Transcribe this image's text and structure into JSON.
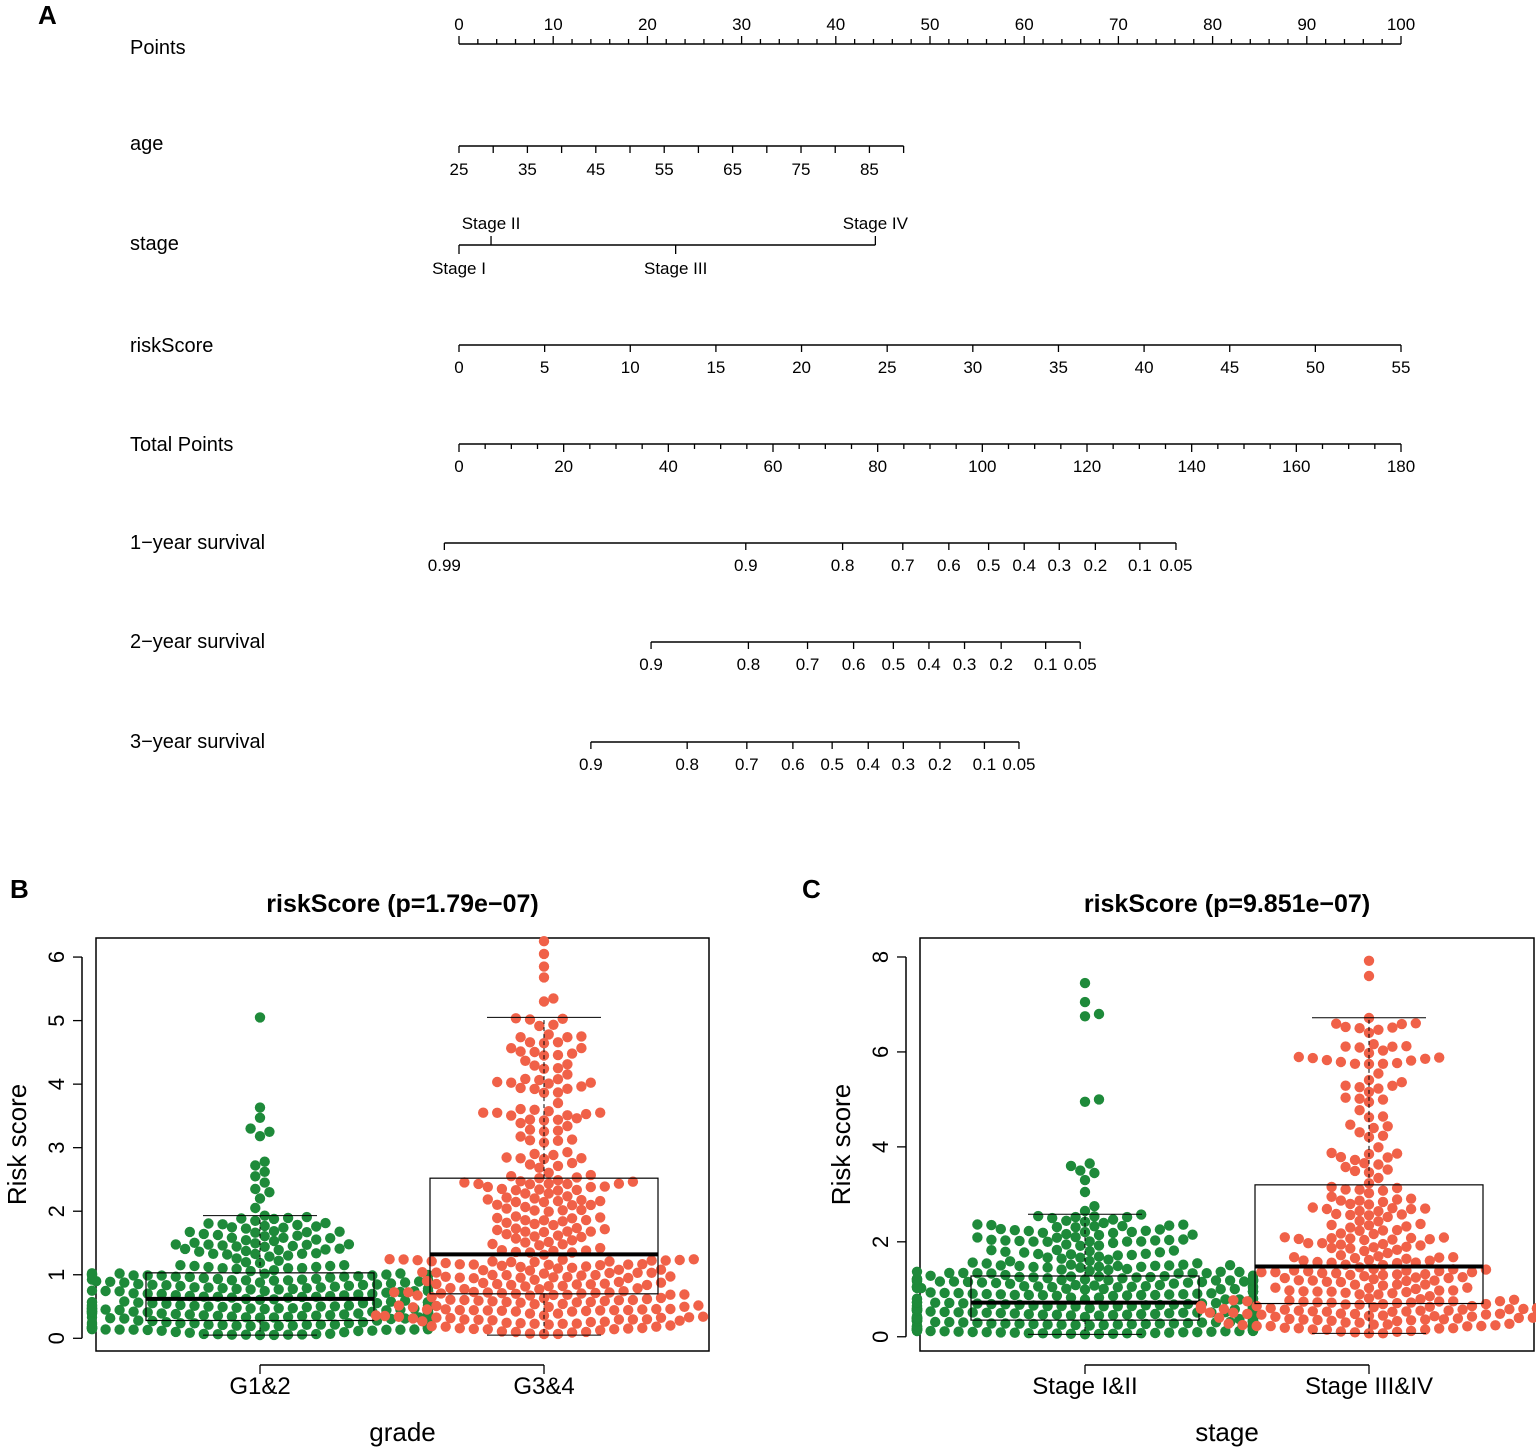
{
  "panel_labels": {
    "a": "A",
    "b": "B",
    "c": "C"
  },
  "colors": {
    "low": "#1e8a3a",
    "high": "#f06148",
    "axis": "#000000"
  },
  "chart_data": [
    {
      "type": "nomogram",
      "panel": "A",
      "rows": [
        {
          "label": "Points",
          "min": 0,
          "max": 100,
          "ticks": [
            0,
            10,
            20,
            30,
            40,
            50,
            60,
            70,
            80,
            90,
            100
          ],
          "minor_step": 2,
          "tick_labels": [
            "0",
            "10",
            "20",
            "30",
            "40",
            "50",
            "60",
            "70",
            "80",
            "90",
            "100"
          ],
          "label_side": "above"
        },
        {
          "label": "age",
          "points_range": [
            0,
            47.2
          ],
          "ticks": [
            25,
            30,
            35,
            40,
            45,
            50,
            55,
            60,
            65,
            70,
            75,
            80,
            85,
            90
          ],
          "tick_labels": [
            "25",
            "35",
            "45",
            "55",
            "65",
            "75",
            "85"
          ],
          "labeled_values": [
            25,
            35,
            45,
            55,
            65,
            75,
            85
          ],
          "label_side": "below"
        },
        {
          "label": "stage",
          "categories": [
            "Stage I",
            "Stage II",
            "Stage III",
            "Stage IV"
          ],
          "points": [
            0,
            3.4,
            23.0,
            44.2
          ],
          "label_positions": [
            "below",
            "above",
            "below",
            "above"
          ]
        },
        {
          "label": "riskScore",
          "min": 0,
          "max": 55,
          "ticks": [
            0,
            5,
            10,
            15,
            20,
            25,
            30,
            35,
            40,
            45,
            50,
            55
          ],
          "tick_labels": [
            "0",
            "5",
            "10",
            "15",
            "20",
            "25",
            "30",
            "35",
            "40",
            "45",
            "50",
            "55"
          ],
          "label_side": "below"
        },
        {
          "label": "Total Points",
          "min": 0,
          "max": 180,
          "ticks": [
            0,
            20,
            40,
            60,
            80,
            100,
            120,
            140,
            160,
            180
          ],
          "minor_step": 5,
          "tick_labels": [
            "0",
            "20",
            "40",
            "60",
            "80",
            "100",
            "120",
            "140",
            "160",
            "180"
          ],
          "label_side": "below"
        },
        {
          "label": "1−year survival",
          "tick_labels": [
            "0.99",
            "0.9",
            "0.8",
            "0.7",
            "0.6",
            "0.5",
            "0.4",
            "0.3",
            "0.2",
            "0.1",
            "0.05"
          ],
          "total_points": [
            -2.8,
            54.8,
            73.3,
            84.8,
            93.6,
            101.2,
            108.0,
            114.7,
            121.6,
            130.1,
            137.0
          ]
        },
        {
          "label": "2−year survival",
          "tick_labels": [
            "0.9",
            "0.8",
            "0.7",
            "0.6",
            "0.5",
            "0.4",
            "0.3",
            "0.2",
            "0.1",
            "0.05"
          ],
          "total_points": [
            36.7,
            55.3,
            66.6,
            75.4,
            83.0,
            89.8,
            96.6,
            103.6,
            112.1,
            118.7
          ]
        },
        {
          "label": "3−year survival",
          "tick_labels": [
            "0.9",
            "0.8",
            "0.7",
            "0.6",
            "0.5",
            "0.4",
            "0.3",
            "0.2",
            "0.1",
            "0.05"
          ],
          "total_points": [
            25.2,
            43.6,
            55.0,
            63.8,
            71.3,
            78.2,
            84.9,
            91.9,
            100.4,
            107.0
          ]
        }
      ]
    },
    {
      "type": "box-swarm",
      "panel": "B",
      "title": "riskScore (p=1.79e−07)",
      "xlabel": "grade",
      "ylabel": "Risk score",
      "ylim": [
        -0.2,
        6.3
      ],
      "yticks": [
        0,
        1,
        2,
        3,
        4,
        5,
        6
      ],
      "categories": [
        "G1&2",
        "G3&4"
      ],
      "boxes": [
        {
          "category": "G1&2",
          "whisker_low": 0.05,
          "q1": 0.28,
          "median": 0.62,
          "q3": 1.03,
          "whisker_high": 1.93,
          "n": 300,
          "outliers": [
            5.05,
            3.63,
            3.47,
            3.3,
            3.25,
            3.18,
            2.78,
            2.72,
            2.62,
            2.55,
            2.45,
            2.35,
            2.3,
            2.2,
            2.05
          ]
        },
        {
          "category": "G3&4",
          "whisker_low": 0.05,
          "q1": 0.7,
          "median": 1.32,
          "q3": 2.52,
          "whisker_high": 5.05,
          "n": 320,
          "outliers": [
            6.25,
            6.05,
            5.85,
            5.68,
            5.35,
            5.3
          ]
        }
      ]
    },
    {
      "type": "box-swarm",
      "panel": "C",
      "title": "riskScore (p=9.851e−07)",
      "xlabel": "stage",
      "ylabel": "Risk score",
      "ylim": [
        -0.3,
        8.4
      ],
      "yticks": [
        0,
        2,
        4,
        6,
        8
      ],
      "categories": [
        "Stage I&II",
        "Stage III&IV"
      ],
      "boxes": [
        {
          "category": "Stage I&II",
          "whisker_low": 0.05,
          "q1": 0.35,
          "median": 0.72,
          "q3": 1.28,
          "whisker_high": 2.58,
          "n": 420,
          "outliers": [
            7.45,
            7.05,
            6.8,
            6.75,
            5.0,
            4.95,
            3.65,
            3.6,
            3.5,
            3.45,
            3.3,
            3.05,
            2.75,
            2.65
          ]
        },
        {
          "category": "Stage III&IV",
          "whisker_low": 0.07,
          "q1": 0.7,
          "median": 1.48,
          "q3": 3.2,
          "whisker_high": 6.72,
          "n": 280,
          "outliers": [
            7.92,
            7.6
          ]
        }
      ]
    }
  ]
}
